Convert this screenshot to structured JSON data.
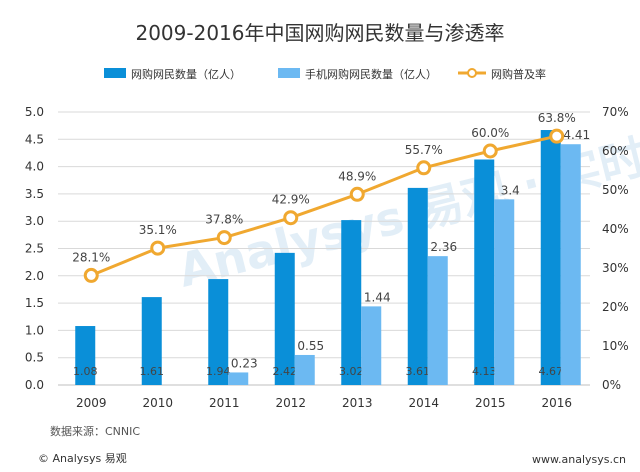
{
  "chart_data": {
    "type": "bar",
    "title": "2009-2016年中国网购网民数量与渗透率",
    "categories": [
      "2009",
      "2010",
      "2011",
      "2012",
      "2013",
      "2014",
      "2015",
      "2016"
    ],
    "series": [
      {
        "name": "网购网民数量（亿人）",
        "type": "bar",
        "axis": "left",
        "color": "#0a8fd8",
        "values": [
          1.08,
          1.61,
          1.94,
          2.42,
          3.02,
          3.61,
          4.13,
          4.67
        ],
        "labels": [
          "1.08",
          "1.61",
          "1.94",
          "2.42",
          "3.02",
          "3.61",
          "4.13",
          "4.67"
        ]
      },
      {
        "name": "手机网购网民数量（亿人）",
        "type": "bar",
        "axis": "left",
        "color": "#6cb9f2",
        "values": [
          null,
          null,
          0.23,
          0.55,
          1.44,
          2.36,
          3.4,
          4.41
        ],
        "labels": [
          "",
          "",
          "0.23",
          "0.55",
          "1.44",
          "2.36",
          "3.4",
          "4.41"
        ]
      },
      {
        "name": "网购普及率",
        "type": "line",
        "axis": "right",
        "color": "#f0a830",
        "values": [
          28.1,
          35.1,
          37.8,
          42.9,
          48.9,
          55.7,
          60.0,
          63.8
        ],
        "labels": [
          "28.1%",
          "35.1%",
          "37.8%",
          "42.9%",
          "48.9%",
          "55.7%",
          "60.0%",
          "63.8%"
        ]
      }
    ],
    "ylim_left": [
      0,
      5.0
    ],
    "yticks_left": [
      "0.0",
      "0.5",
      "1.0",
      "1.5",
      "2.0",
      "2.5",
      "3.0",
      "3.5",
      "4.0",
      "4.5",
      "5.0"
    ],
    "ylim_right": [
      0,
      70
    ],
    "yticks_right": [
      "0%",
      "10%",
      "20%",
      "30%",
      "40%",
      "50%",
      "60%",
      "70%"
    ],
    "legend_position": "top",
    "source": "数据来源：CNNIC",
    "watermark": "Analysys 易观 · 实时分析驱动用户资产成长"
  },
  "footer": {
    "brand": "© Analysys 易观",
    "url": "www.analysys.cn"
  },
  "colors": {
    "gridline": "#d9d9d9",
    "axis_text": "#333333",
    "label_text": "#444444"
  }
}
